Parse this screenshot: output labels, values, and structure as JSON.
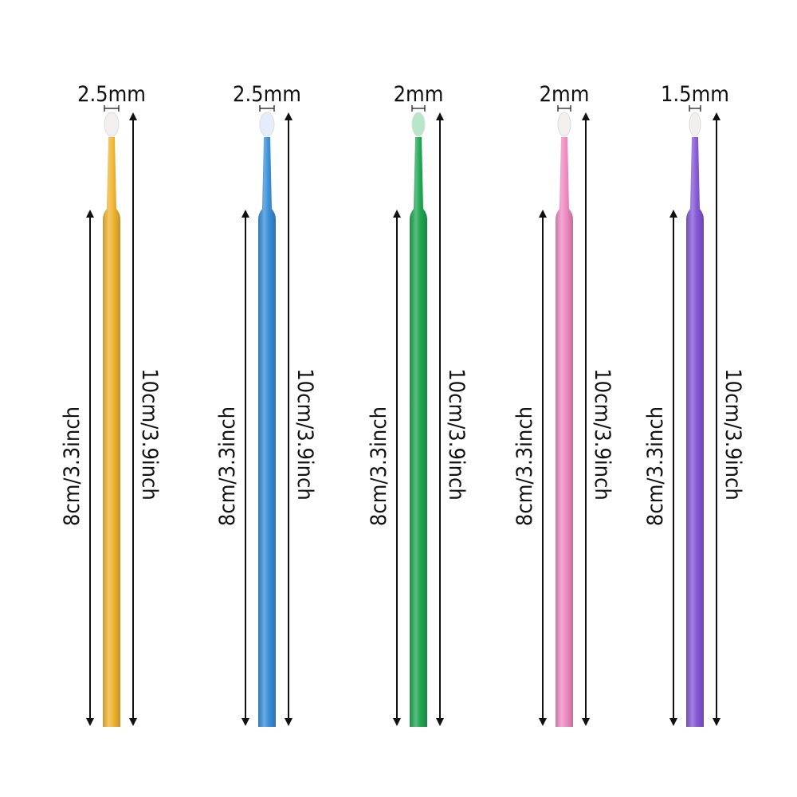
{
  "brushes": [
    {
      "color": "#f2b632",
      "head_label": "2.5mm",
      "handle_label": "8cm/3.3inch",
      "total_label": "10cm/3.9inch"
    },
    {
      "color": "#3a8fd8",
      "head_label": "2.5mm",
      "handle_label": "8cm/3.3inch",
      "total_label": "10cm/3.9inch"
    },
    {
      "color": "#22a653",
      "head_label": "2mm",
      "handle_label": "8cm/3.3inch",
      "total_label": "10cm/3.9inch"
    },
    {
      "color": "#f08cc2",
      "head_label": "2mm",
      "handle_label": "8cm/3.3inch",
      "total_label": "10cm/3.9inch"
    },
    {
      "color": "#8658d6",
      "head_label": "1.5mm",
      "handle_label": "8cm/3.3inch",
      "total_label": "10cm/3.9inch"
    }
  ]
}
